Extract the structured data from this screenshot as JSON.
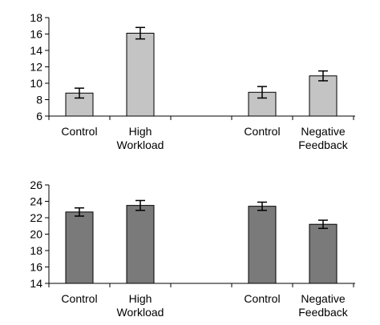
{
  "chart_data": [
    {
      "type": "bar",
      "categories": [
        "Control",
        "High Workload",
        "",
        "Control",
        "Negative Feedback"
      ],
      "category_lines": [
        [
          "Control"
        ],
        [
          "High",
          "Workload"
        ],
        [],
        [
          "Control"
        ],
        [
          "Negative",
          "Feedback"
        ]
      ],
      "values": [
        8.8,
        16.1,
        null,
        8.9,
        10.9
      ],
      "error": [
        0.6,
        0.7,
        null,
        0.7,
        0.6
      ],
      "ylim": [
        6,
        18
      ],
      "yticks": [
        6,
        8,
        10,
        12,
        14,
        16,
        18
      ],
      "bar_color": "#c4c4c4",
      "title": "",
      "xlabel": "",
      "ylabel": "",
      "grid": false
    },
    {
      "type": "bar",
      "categories": [
        "Control",
        "High Workload",
        "",
        "Control",
        "Negative Feedback"
      ],
      "category_lines": [
        [
          "Control"
        ],
        [
          "High",
          "Workload"
        ],
        [],
        [
          "Control"
        ],
        [
          "Negative",
          "Feedback"
        ]
      ],
      "values": [
        22.7,
        23.5,
        null,
        23.4,
        21.2
      ],
      "error": [
        0.5,
        0.6,
        null,
        0.5,
        0.5
      ],
      "ylim": [
        14,
        26
      ],
      "yticks": [
        14,
        16,
        18,
        20,
        22,
        24,
        26
      ],
      "bar_color": "#7a7a7a",
      "title": "",
      "xlabel": "",
      "ylabel": "",
      "grid": false
    }
  ]
}
